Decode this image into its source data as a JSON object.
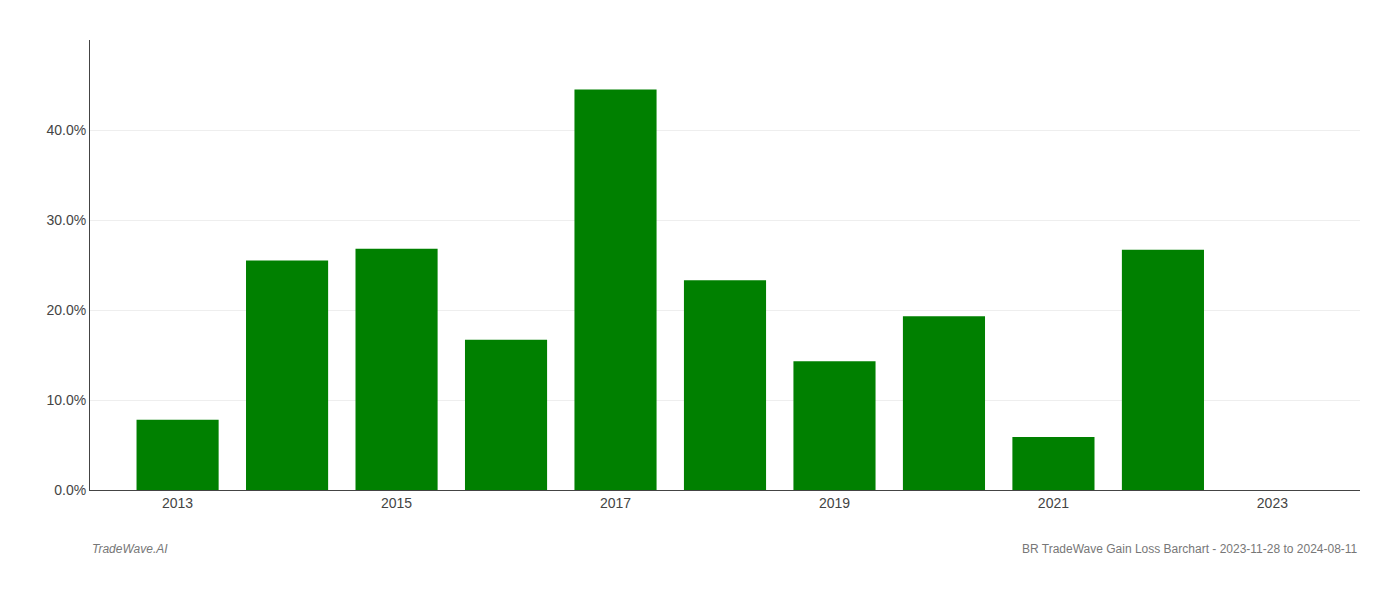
{
  "chart_data": {
    "type": "bar",
    "x": [
      2013,
      2014,
      2015,
      2016,
      2017,
      2018,
      2019,
      2020,
      2021,
      2022
    ],
    "values": [
      0.078,
      0.255,
      0.268,
      0.167,
      0.445,
      0.233,
      0.143,
      0.193,
      0.059,
      0.267
    ],
    "color": "#008000",
    "xlim": [
      2012.2,
      2023.8
    ],
    "xticks": [
      2013,
      2015,
      2017,
      2019,
      2021,
      2023
    ],
    "ylim": [
      0,
      0.5
    ],
    "yticks": [
      {
        "value": 0.0,
        "label": "0.0%"
      },
      {
        "value": 0.1,
        "label": "10.0%"
      },
      {
        "value": 0.2,
        "label": "20.0%"
      },
      {
        "value": 0.3,
        "label": "30.0%"
      },
      {
        "value": 0.4,
        "label": "40.0%"
      }
    ],
    "grid": true,
    "annotations": [
      "TradeWave.AI",
      "BR TradeWave Gain Loss Barchart - 2023-11-28 to 2024-08-11"
    ]
  }
}
